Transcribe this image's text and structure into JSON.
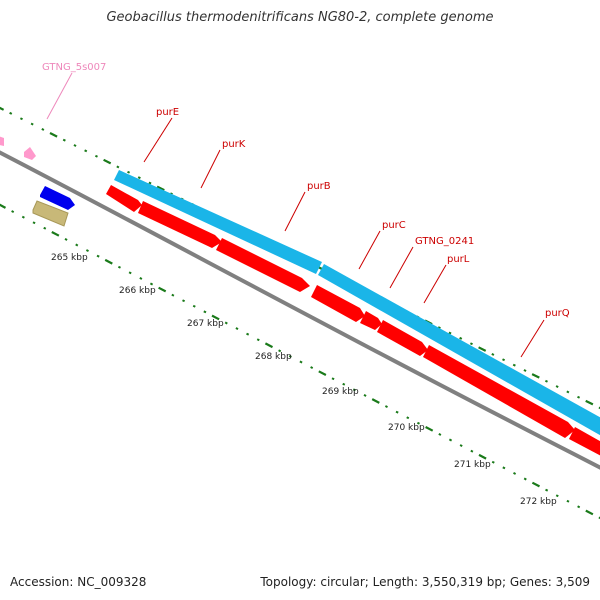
{
  "title": "Geobacillus thermodenitrificans NG80-2, complete genome",
  "footer": {
    "accession": "Accession: NC_009328",
    "summary": "Topology: circular; Length: 3,550,319 bp; Genes: 3,509"
  },
  "colors": {
    "gene_forward": "#1ab5e8",
    "gene_reverse": "#ff0000",
    "rrna": "#ff99cc",
    "blue_feature": "#0000ee",
    "tan_feature": "#c8b878",
    "backbone": "#808080",
    "tick": "#1a7a1a",
    "gene_label": "#cc0000",
    "rna_label": "#ee88bb",
    "kbp_label": "#222222"
  },
  "scale_labels": [
    "265 kbp",
    "266 kbp",
    "267 kbp",
    "268 kbp",
    "269 kbp",
    "270 kbp",
    "271 kbp",
    "272 kbp"
  ],
  "gene_labels": [
    "purE",
    "purK",
    "purB",
    "purC",
    "GTNG_0241",
    "purL",
    "purQ"
  ],
  "rna_labels": [
    "GTNG_5s007"
  ]
}
